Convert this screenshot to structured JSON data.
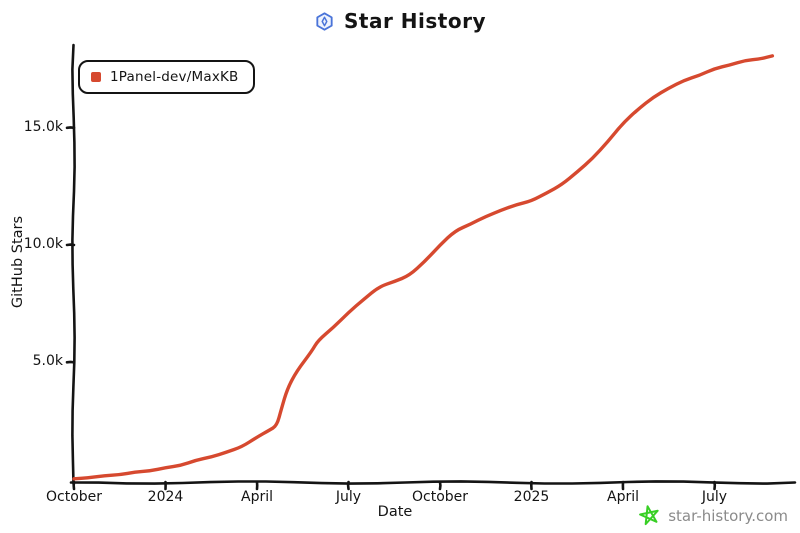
{
  "title": {
    "text": "Star History"
  },
  "brand": {
    "logo_color": "#4a74d9"
  },
  "legend": {
    "items": [
      {
        "label": "1Panel-dev/MaxKB",
        "color": "#d6492f"
      }
    ]
  },
  "watermark": {
    "text": "star-history.com",
    "star_color": "#38cf25",
    "text_color": "#8b8b8b"
  },
  "axis_color": "#141414",
  "chart_data": {
    "type": "line",
    "title": "Star History",
    "xlabel": "Date",
    "ylabel": "GitHub Stars",
    "x_start_month": "2023-10",
    "xlim_months": [
      0,
      23.6
    ],
    "ylim": [
      0,
      18600
    ],
    "grid": false,
    "legend_position": "top-left",
    "x_ticks": [
      {
        "label": "October",
        "month_offset": 0
      },
      {
        "label": "2024",
        "month_offset": 3
      },
      {
        "label": "April",
        "month_offset": 6
      },
      {
        "label": "July",
        "month_offset": 9
      },
      {
        "label": "October",
        "month_offset": 12
      },
      {
        "label": "2025",
        "month_offset": 15
      },
      {
        "label": "April",
        "month_offset": 18
      },
      {
        "label": "July",
        "month_offset": 21
      }
    ],
    "y_ticks": [
      {
        "label": "5.0k",
        "value": 5000
      },
      {
        "label": "10.0k",
        "value": 10000
      },
      {
        "label": "15.0k",
        "value": 15000
      }
    ],
    "series": [
      {
        "name": "1Panel-dev/MaxKB",
        "color": "#d6492f",
        "points": [
          [
            0,
            30
          ],
          [
            0.5,
            80
          ],
          [
            1,
            150
          ],
          [
            1.5,
            220
          ],
          [
            2,
            300
          ],
          [
            2.5,
            390
          ],
          [
            3,
            480
          ],
          [
            3.5,
            620
          ],
          [
            4,
            800
          ],
          [
            4.5,
            980
          ],
          [
            5,
            1150
          ],
          [
            5.5,
            1400
          ],
          [
            6,
            1800
          ],
          [
            6.4,
            2100
          ],
          [
            6.65,
            2300
          ],
          [
            6.8,
            3000
          ],
          [
            7,
            3900
          ],
          [
            7.3,
            4600
          ],
          [
            7.8,
            5500
          ],
          [
            8,
            5900
          ],
          [
            8.5,
            6500
          ],
          [
            9,
            7100
          ],
          [
            9.5,
            7700
          ],
          [
            10,
            8200
          ],
          [
            10.5,
            8450
          ],
          [
            11,
            8700
          ],
          [
            11.5,
            9300
          ],
          [
            12,
            10000
          ],
          [
            12.5,
            10600
          ],
          [
            13,
            10900
          ],
          [
            13.5,
            11200
          ],
          [
            14,
            11500
          ],
          [
            14.5,
            11700
          ],
          [
            15,
            11900
          ],
          [
            15.5,
            12200
          ],
          [
            16,
            12600
          ],
          [
            16.5,
            13100
          ],
          [
            17,
            13700
          ],
          [
            17.5,
            14400
          ],
          [
            18,
            15200
          ],
          [
            18.5,
            15800
          ],
          [
            19,
            16300
          ],
          [
            19.5,
            16700
          ],
          [
            20,
            17000
          ],
          [
            20.5,
            17250
          ],
          [
            21,
            17500
          ],
          [
            21.5,
            17700
          ],
          [
            22,
            17850
          ],
          [
            22.5,
            17950
          ],
          [
            22.9,
            18050
          ]
        ]
      }
    ]
  }
}
